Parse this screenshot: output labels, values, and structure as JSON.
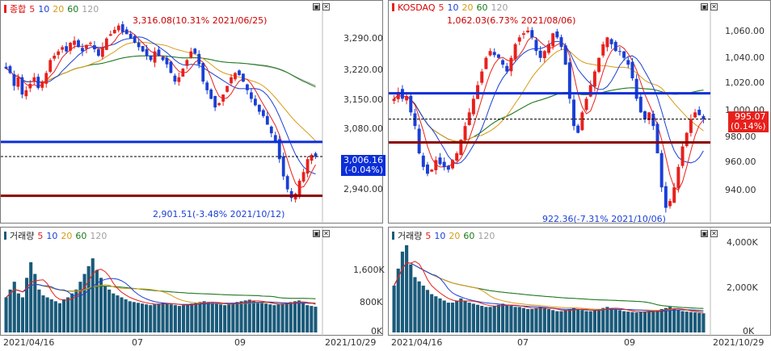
{
  "kospi": {
    "legend": {
      "name": "종합",
      "ma5": "5",
      "ma10": "10",
      "ma20": "20",
      "ma60": "60",
      "ma120": "120"
    },
    "high_annotation": "3,316.08(10.31% 2021/06/25)",
    "low_annotation": "2,901.51(-3.48% 2021/10/12)",
    "current_value": "3,006.16",
    "current_change": "(-0.04%)",
    "yticks": [
      "3,290.00",
      "3,220.00",
      "3,150.00",
      "3,080.00",
      "2,940.00"
    ]
  },
  "kosdaq": {
    "legend": {
      "name": "KOSDAQ",
      "ma5": "5",
      "ma10": "10",
      "ma20": "20",
      "ma60": "60",
      "ma120": "120"
    },
    "high_annotation": "1,062.03(6.73% 2021/08/06)",
    "low_annotation": "922.36(-7.31% 2021/10/06)",
    "current_value": "995.07",
    "current_change": "(0.14%)",
    "yticks": [
      "1,060.00",
      "1,040.00",
      "1,020.00",
      "1,000.00",
      "980.00",
      "960.00",
      "940.00"
    ]
  },
  "kospi_volume": {
    "legend": {
      "name": "거래량",
      "ma5": "5",
      "ma10": "10",
      "ma20": "20",
      "ma60": "60",
      "ma120": "120"
    },
    "yticks": [
      "1,600K",
      "800K",
      "0K"
    ]
  },
  "kosdaq_volume": {
    "legend": {
      "name": "거래량",
      "ma5": "5",
      "ma10": "10",
      "ma20": "20",
      "ma60": "60",
      "ma120": "120"
    },
    "yticks": [
      "4,000K",
      "2,000K",
      "0K"
    ]
  },
  "x_axis": {
    "kospi": [
      "2021/04/16",
      "07",
      "09",
      "2021/10/29"
    ],
    "kosdaq": [
      "2021/04/16",
      "07",
      "09",
      "2021/10/29"
    ]
  },
  "colors": {
    "up": "#e8201c",
    "down": "#1a3fd6",
    "ma5": "#e8201c",
    "ma10": "#1a3fd6",
    "ma20": "#d89a1a",
    "ma60": "#1a7a1a",
    "ma120": "#a0a0a0",
    "hline_blue": "#0a2ed8",
    "hline_red": "#8b0000"
  },
  "chart_data": [
    {
      "type": "candlestick",
      "title": "종합",
      "x_start": "2021/04/16",
      "x_end": "2021/10/29",
      "ylim": [
        2890,
        3330
      ],
      "high": {
        "value": 3316.08,
        "date": "2021/06/25"
      },
      "low": {
        "value": 2901.51,
        "date": "2021/10/12"
      },
      "current": 3006.16,
      "horizontal_lines": [
        3040,
        2915
      ],
      "close_path": [
        3210,
        3200,
        3170,
        3190,
        3150,
        3160,
        3175,
        3190,
        3165,
        3180,
        3200,
        3230,
        3240,
        3250,
        3260,
        3250,
        3270,
        3275,
        3260,
        3250,
        3265,
        3270,
        3255,
        3240,
        3260,
        3280,
        3290,
        3300,
        3310,
        3295,
        3290,
        3280,
        3270,
        3260,
        3250,
        3240,
        3230,
        3250,
        3240,
        3230,
        3220,
        3200,
        3180,
        3190,
        3210,
        3230,
        3250,
        3245,
        3220,
        3180,
        3160,
        3140,
        3120,
        3130,
        3150,
        3170,
        3190,
        3200,
        3195,
        3180,
        3160,
        3140,
        3125,
        3110,
        3100,
        3080,
        3060,
        3040,
        3000,
        2960,
        2930,
        2910,
        2920,
        2950,
        2970,
        3000,
        3010,
        3006
      ]
    },
    {
      "type": "candlestick",
      "title": "KOSDAQ",
      "x_start": "2021/04/16",
      "x_end": "2021/10/29",
      "ylim": [
        925,
        1070
      ],
      "high": {
        "value": 1062.03,
        "date": "2021/08/06"
      },
      "low": {
        "value": 922.36,
        "date": "2021/10/06"
      },
      "current": 995.07,
      "horizontal_lines": [
        1014,
        978
      ],
      "close_path": [
        1010,
        1015,
        1010,
        1012,
        1000,
        990,
        970,
        960,
        955,
        958,
        965,
        962,
        960,
        958,
        965,
        970,
        980,
        990,
        1000,
        1010,
        1020,
        1030,
        1040,
        1045,
        1042,
        1040,
        1035,
        1030,
        1040,
        1050,
        1055,
        1058,
        1060,
        1055,
        1045,
        1040,
        1045,
        1050,
        1058,
        1055,
        1048,
        1035,
        1010,
        990,
        985,
        1000,
        1010,
        1020,
        1030,
        1040,
        1050,
        1055,
        1050,
        1045,
        1045,
        1040,
        1035,
        1025,
        1010,
        1000,
        995,
        1000,
        990,
        970,
        945,
        930,
        935,
        945,
        960,
        975,
        985,
        995,
        1000,
        998,
        995
      ]
    },
    {
      "type": "bar",
      "title": "거래량",
      "ylim": [
        0,
        2400
      ],
      "yunit": "K",
      "values": [
        900,
        1100,
        1300,
        1000,
        900,
        1400,
        1800,
        1500,
        1100,
        950,
        900,
        850,
        800,
        750,
        850,
        900,
        1000,
        1100,
        1300,
        1500,
        1700,
        1900,
        1600,
        1400,
        1200,
        1100,
        1000,
        950,
        900,
        850,
        800,
        780,
        760,
        740,
        720,
        700,
        720,
        740,
        760,
        740,
        720,
        700,
        680,
        700,
        720,
        740,
        760,
        780,
        800,
        780,
        760,
        740,
        720,
        700,
        720,
        760,
        780,
        800,
        820,
        840,
        800,
        780,
        760,
        740,
        720,
        700,
        720,
        740,
        760,
        780,
        800,
        820,
        760,
        700,
        680,
        660
      ]
    },
    {
      "type": "bar",
      "title": "거래량",
      "ylim": [
        0,
        4400
      ],
      "yunit": "K",
      "values": [
        2200,
        3000,
        3800,
        4100,
        3200,
        2600,
        2400,
        2200,
        2000,
        1800,
        1700,
        1600,
        1500,
        1400,
        1400,
        1500,
        1600,
        1500,
        1400,
        1350,
        1300,
        1250,
        1200,
        1200,
        1250,
        1300,
        1350,
        1300,
        1250,
        1200,
        1200,
        1150,
        1100,
        1100,
        1150,
        1200,
        1150,
        1100,
        1050,
        1000,
        1000,
        1050,
        1100,
        1150,
        1100,
        1050,
        1000,
        1000,
        1050,
        1100,
        1150,
        1200,
        1150,
        1100,
        1050,
        1000,
        980,
        960,
        940,
        960,
        980,
        1000,
        1020,
        1050,
        1100,
        1150,
        1200,
        1100,
        1050,
        1000,
        980,
        960,
        940,
        920,
        900
      ]
    }
  ]
}
